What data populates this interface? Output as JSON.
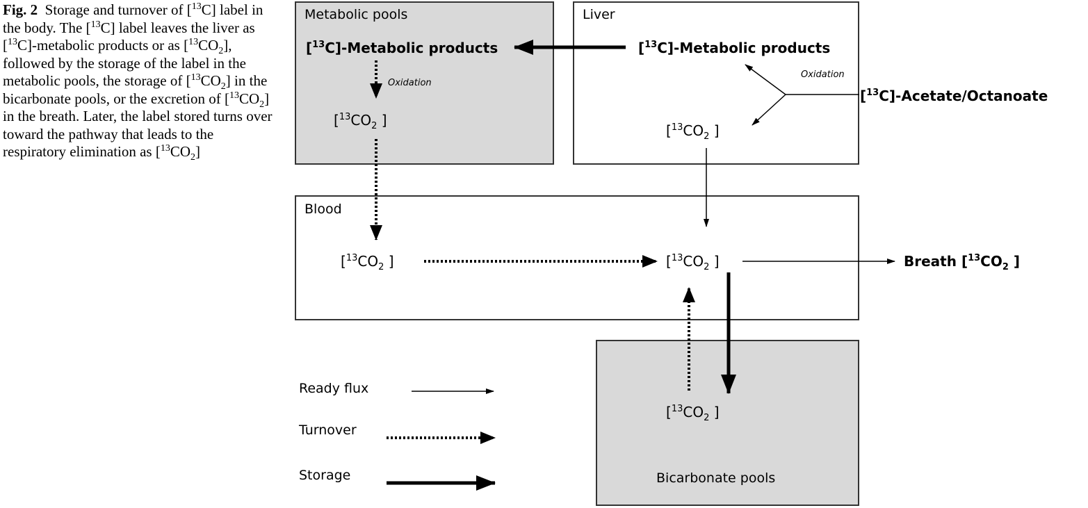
{
  "caption": {
    "fig_label": "Fig. 2",
    "parts": [
      {
        "t": "Storage and turnover of ["
      },
      {
        "t": "13",
        "sup": true
      },
      {
        "t": "C] label in the body. The ["
      },
      {
        "t": "13",
        "sup": true
      },
      {
        "t": "C] label leaves the liver as ["
      },
      {
        "t": "13",
        "sup": true
      },
      {
        "t": "C]-metabolic products or as ["
      },
      {
        "t": "13",
        "sup": true
      },
      {
        "t": "CO"
      },
      {
        "t": "2",
        "sub": true
      },
      {
        "t": "], followed by the storage of the label in the metabolic pools, the storage of ["
      },
      {
        "t": "13",
        "sup": true
      },
      {
        "t": "CO"
      },
      {
        "t": "2",
        "sub": true
      },
      {
        "t": "] in the bicarbonate pools, or the excretion of ["
      },
      {
        "t": "13",
        "sup": true
      },
      {
        "t": "CO"
      },
      {
        "t": "2",
        "sub": true
      },
      {
        "t": "] in the breath. Later, the label stored turns over toward the pathway that leads to the respiratory elimination as ["
      },
      {
        "t": "13",
        "sup": true
      },
      {
        "t": "CO"
      },
      {
        "t": "2",
        "sub": true
      },
      {
        "t": "]"
      }
    ]
  },
  "boxes": {
    "metabolic_pools": "Metabolic pools",
    "liver": "Liver",
    "blood": "Blood",
    "bicarbonate_pools": "Bicarbonate pools"
  },
  "nodes": {
    "metabolic_products": {
      "pre": "[",
      "sup": "13",
      "post": "C]-Metabolic products"
    },
    "acetate": {
      "pre": "[",
      "sup": "13",
      "post": "C]-Acetate/Octanoate"
    },
    "co2": {
      "pre": "[",
      "sup": "13",
      "mid": "CO",
      "sub": "2",
      "post": " ]"
    },
    "breath": {
      "word": "Breath ",
      "pre": "[",
      "sup": "13",
      "mid": "CO",
      "sub": "2",
      "post": " ]"
    },
    "oxidation": "Oxidation"
  },
  "legend": {
    "ready_flux": "Ready flux",
    "turnover": "Turnover",
    "storage": "Storage"
  },
  "colors": {
    "pool_fill": "#d9d9d9",
    "box_stroke": "#333333",
    "arrow": "#000000"
  }
}
